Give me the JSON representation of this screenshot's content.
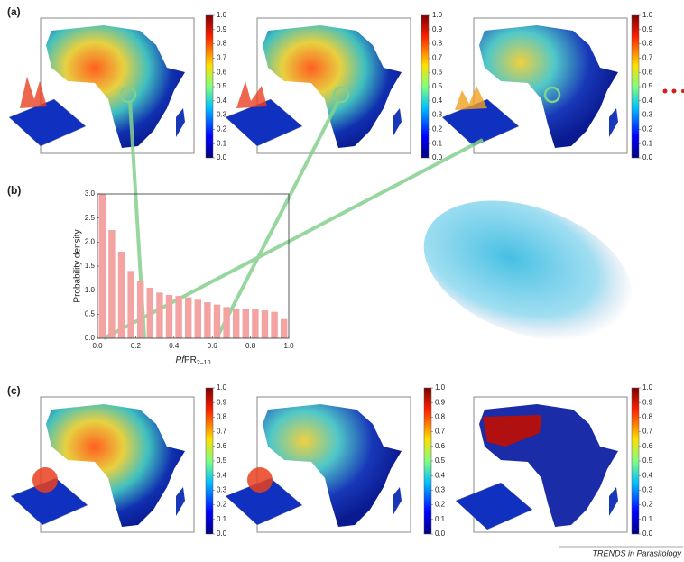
{
  "panel_labels": [
    "(a)",
    "(b)",
    "(c)"
  ],
  "colorbar": {
    "ticks": [
      {
        "value": 0,
        "label": "0.0"
      },
      {
        "value": 0.1,
        "label": "0.1"
      },
      {
        "value": 0.2,
        "label": "0.2"
      },
      {
        "value": 0.3,
        "label": "0.3"
      },
      {
        "value": 0.4,
        "label": "0.4"
      },
      {
        "value": 0.5,
        "label": "0.5"
      },
      {
        "value": 0.6,
        "label": "0.6"
      },
      {
        "value": 0.7,
        "label": "0.7"
      },
      {
        "value": 0.8,
        "label": "0.8"
      },
      {
        "value": 0.9,
        "label": "0.9"
      },
      {
        "value": 1,
        "label": "1.0"
      }
    ]
  },
  "chart_data": {
    "type": "histogram",
    "ylabel": "Probability density",
    "xlabel": {
      "italic": "Pf",
      "main": "PR",
      "sub": "2–10"
    },
    "bins": [
      0,
      0.05,
      0.1,
      0.15,
      0.2,
      0.25,
      0.3,
      0.35,
      0.4,
      0.45,
      0.5,
      0.55,
      0.6,
      0.65,
      0.7,
      0.75,
      0.8,
      0.85,
      0.9,
      0.95,
      1
    ],
    "values": [
      3.0,
      2.25,
      1.8,
      1.4,
      1.2,
      1.05,
      0.95,
      0.9,
      0.88,
      0.85,
      0.8,
      0.75,
      0.7,
      0.65,
      0.6,
      0.6,
      0.6,
      0.58,
      0.55,
      0.4
    ],
    "color": "#f4a3a3",
    "xlim": [
      0,
      1
    ],
    "ylim": [
      0,
      3
    ],
    "xticks": [
      {
        "value": 0,
        "label": "0.0"
      },
      {
        "value": 0.2,
        "label": "0.2"
      },
      {
        "value": 0.4,
        "label": "0.4"
      },
      {
        "value": 0.6,
        "label": "0.6"
      },
      {
        "value": 0.8,
        "label": "0.8"
      },
      {
        "value": 1,
        "label": "1.0"
      }
    ],
    "yticks": [
      {
        "value": 0,
        "label": "0.0"
      },
      {
        "value": 0.5,
        "label": "0.5"
      },
      {
        "value": 1,
        "label": "1.0"
      },
      {
        "value": 1.5,
        "label": "1.5"
      },
      {
        "value": 2,
        "label": "2.0"
      },
      {
        "value": 2.5,
        "label": "2.5"
      },
      {
        "value": 3,
        "label": "3.0"
      }
    ]
  },
  "footer": "TRENDS in Parasitology"
}
